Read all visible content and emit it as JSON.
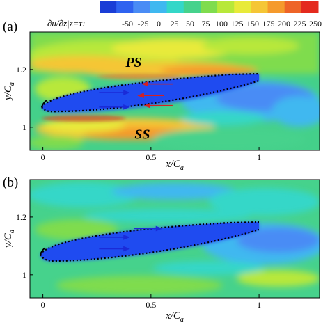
{
  "colorbar": {
    "label": "∂u/∂z|z=τ:",
    "ticks": [
      "-50",
      "-25",
      "0",
      "25",
      "50",
      "75",
      "100",
      "125",
      "150",
      "175",
      "200",
      "225",
      "250"
    ],
    "colors": [
      "#1a3dd6",
      "#2f63f0",
      "#4a8cf5",
      "#3fb8f0",
      "#34d7c8",
      "#46d28c",
      "#7fdc4e",
      "#b8e83a",
      "#e8ea3a",
      "#f5c636",
      "#f59a2c",
      "#ee6428",
      "#e42a1e"
    ]
  },
  "chart_data": [
    {
      "panel": "(a)",
      "type": "heatmap",
      "xlabel": "x/C",
      "xlabel_sub": "a",
      "ylabel": "y/C",
      "ylabel_sub": "a",
      "x_ticks": [
        "0",
        "0.5",
        "1"
      ],
      "y_ticks": [
        "1",
        "1.2"
      ],
      "xlim": [
        -0.06,
        1.28
      ],
      "ylim": [
        0.92,
        1.33
      ],
      "annotations": [
        {
          "text": "PS",
          "x": 0.42,
          "y": 1.21
        },
        {
          "text": "SS",
          "x": 0.46,
          "y": 0.96
        }
      ],
      "arrows": [
        {
          "color": "blue",
          "from": [
            0.26,
            1.12
          ],
          "to": [
            0.4,
            1.12
          ]
        },
        {
          "color": "blue",
          "from": [
            0.26,
            1.07
          ],
          "to": [
            0.4,
            1.07
          ]
        },
        {
          "color": "red",
          "from": [
            0.6,
            1.15
          ],
          "to": [
            0.46,
            1.15
          ]
        },
        {
          "color": "red",
          "from": [
            0.56,
            1.11
          ],
          "to": [
            0.44,
            1.11
          ]
        },
        {
          "color": "red",
          "from": [
            0.6,
            1.075
          ],
          "to": [
            0.47,
            1.075
          ]
        }
      ]
    },
    {
      "panel": "(b)",
      "type": "heatmap",
      "xlabel": "x/C",
      "xlabel_sub": "a",
      "ylabel": "y/C",
      "ylabel_sub": "a",
      "x_ticks": [
        "0",
        "0.5",
        "1"
      ],
      "y_ticks": [
        "1",
        "1.2"
      ],
      "xlim": [
        -0.06,
        1.28
      ],
      "ylim": [
        0.92,
        1.33
      ],
      "annotations": [],
      "arrows": [
        {
          "color": "blue",
          "from": [
            0.26,
            1.13
          ],
          "to": [
            0.4,
            1.13
          ]
        },
        {
          "color": "blue",
          "from": [
            0.26,
            1.09
          ],
          "to": [
            0.4,
            1.09
          ]
        },
        {
          "color": "blue",
          "from": [
            0.42,
            1.16
          ],
          "to": [
            0.55,
            1.16
          ]
        }
      ]
    }
  ]
}
